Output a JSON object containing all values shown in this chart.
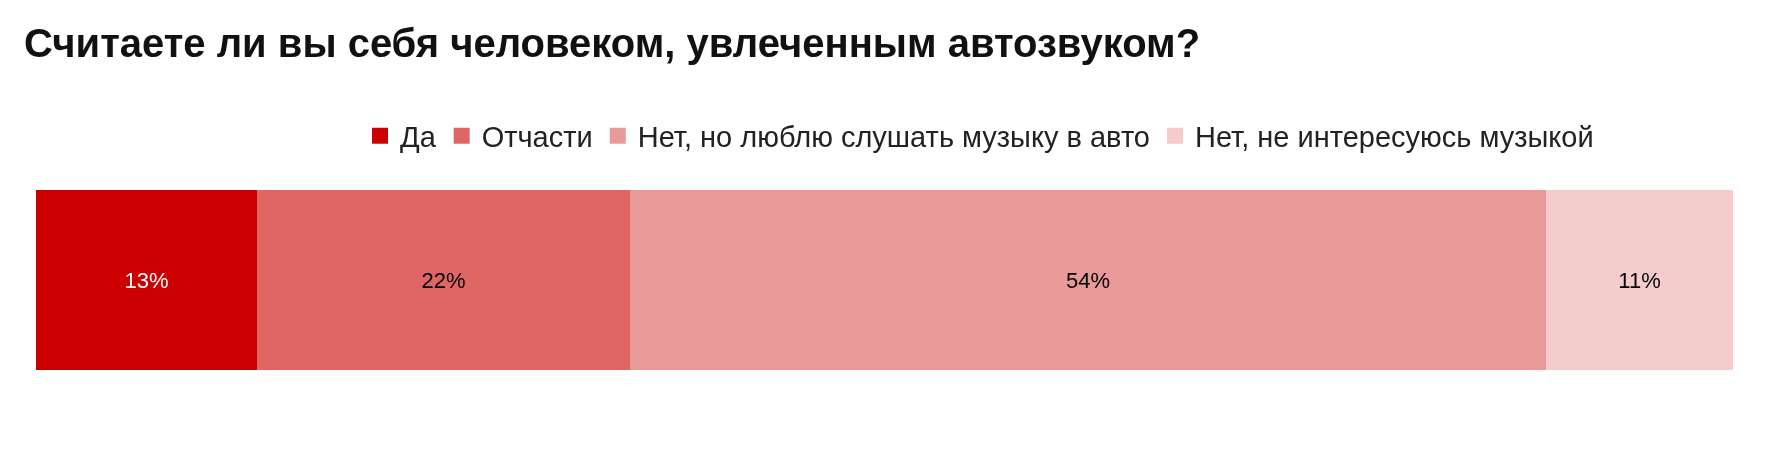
{
  "chart_data": {
    "type": "bar",
    "orientation": "horizontal",
    "stacked": true,
    "title": "Считаете ли вы себя человеком, увлеченным автозвуком?",
    "categories": [
      null
    ],
    "series": [
      {
        "name": "Да",
        "color": "#cc0000",
        "values": [
          13
        ],
        "value_labels": [
          "13%"
        ]
      },
      {
        "name": "Отчасти",
        "color": "#e06666",
        "values": [
          22
        ],
        "value_labels": [
          "22%"
        ]
      },
      {
        "name": "Нет, но люблю слушать музыку в авто",
        "color": "#ea9999",
        "values": [
          54
        ],
        "value_labels": [
          "54%"
        ]
      },
      {
        "name": "Нет, не интересуюсь музыкой",
        "color": "#f4cccc",
        "values": [
          11
        ],
        "value_labels": [
          "11%"
        ]
      }
    ],
    "xlim": [
      0,
      100
    ],
    "legend": "top"
  }
}
